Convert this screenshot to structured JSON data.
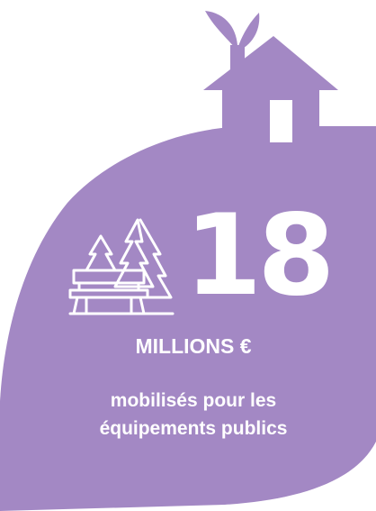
{
  "colors": {
    "shape": "#a388c4",
    "text": "#ffffff",
    "background": "#ffffff"
  },
  "icons": [
    "leaf-sprout-icon",
    "house-icon",
    "park-bench-trees-icon"
  ],
  "figure": {
    "amount": "18",
    "unit": "MILLIONS €",
    "description_line1": "mobilisés pour les",
    "description_line2": "équipements publics"
  }
}
